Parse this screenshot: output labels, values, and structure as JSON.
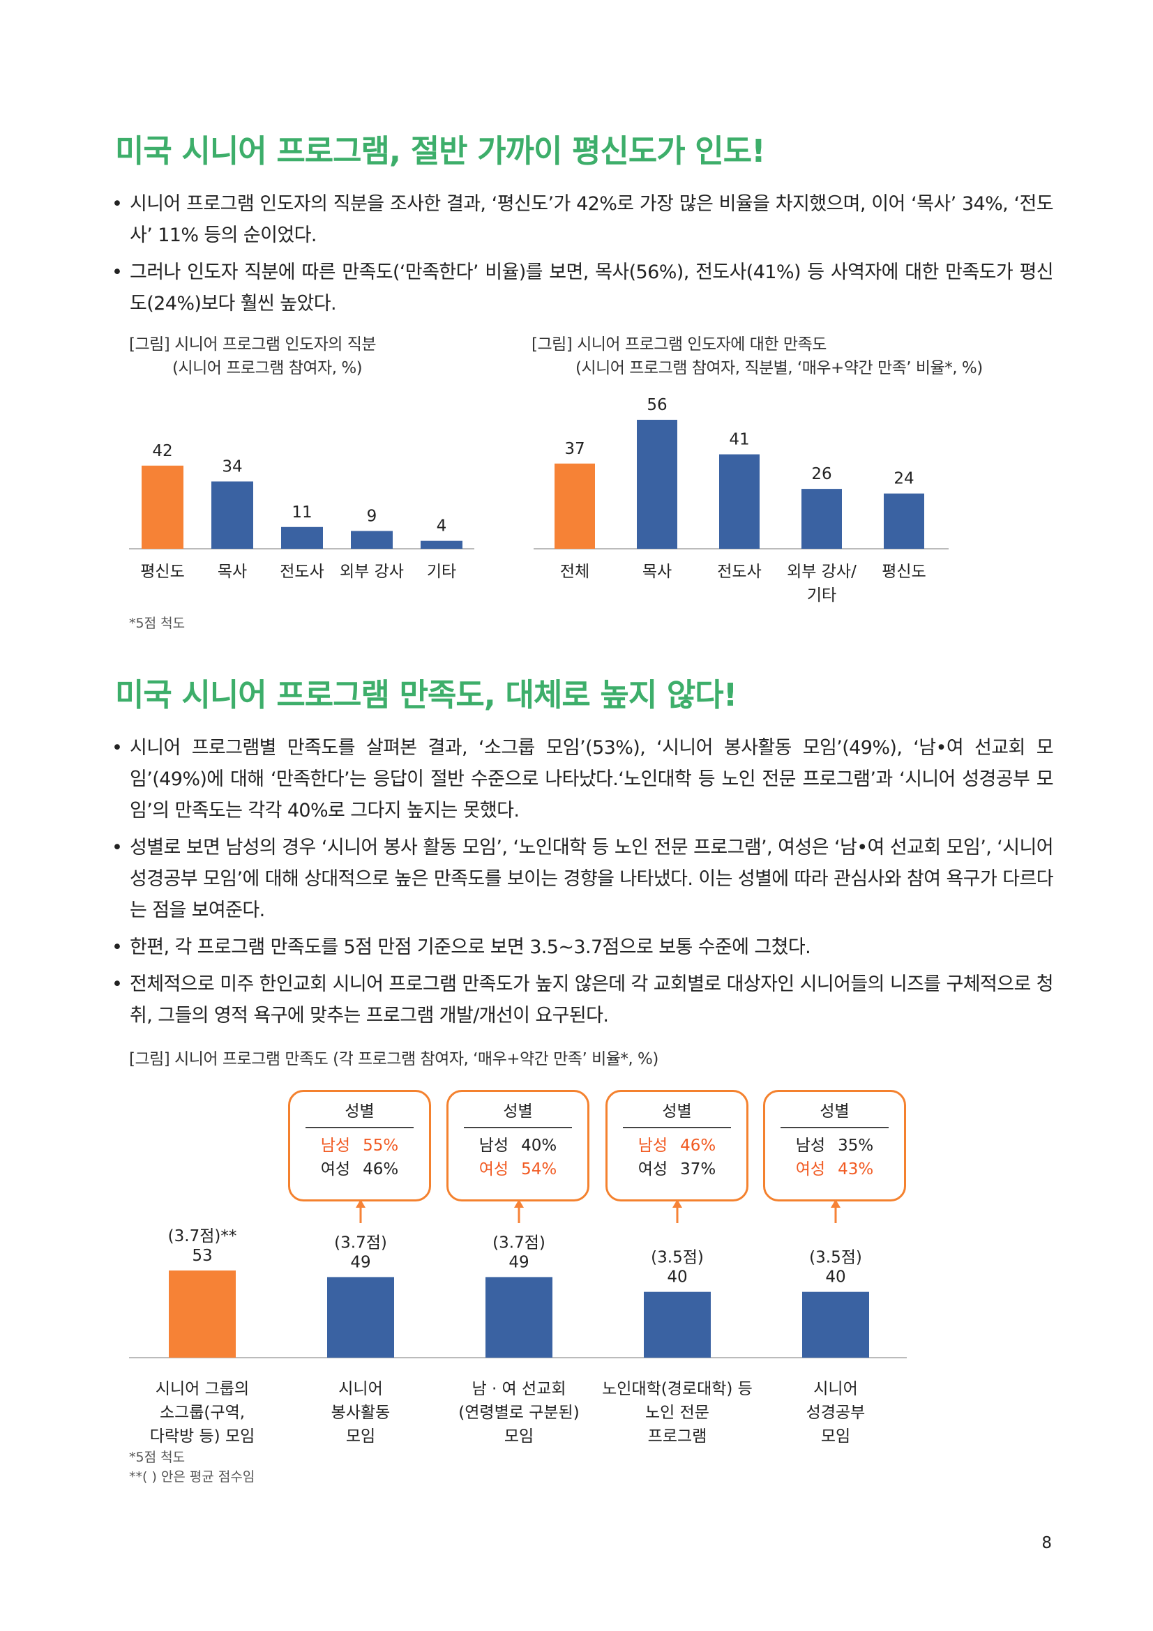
{
  "section1": {
    "title": "미국 시니어 프로그램, 절반 가까이 평신도가 인도!",
    "bullets": [
      "시니어 프로그램 인도자의 직분을 조사한 결과, ‘평신도’가 42%로 가장 많은 비율을 차지했으며, 이어 ‘목사’ 34%, ‘전도사’ 11% 등의 순이었다.",
      "그러나 인도자 직분에 따른 만족도(‘만족한다’ 비율)를 보면, 목사(56%), 전도사(41%) 등 사역자에 대한 만족도가 평신도(24%)보다 훨씬 높았다."
    ],
    "chart1_caption": [
      "[그림] 시니어 프로그램 인도자의 직분",
      "(시니어 프로그램 참여자, %)"
    ],
    "chart2_caption": [
      "[그림] 시니어 프로그램 인도자에 대한 만족도",
      "(시니어 프로그램 참여자, 직분별, ‘매우+약간 만족’ 비율*, %)"
    ],
    "note": "*5점 척도"
  },
  "section2": {
    "title": "미국 시니어 프로그램 만족도, 대체로 높지 않다!",
    "bullets": [
      "시니어 프로그램별 만족도를 살펴본 결과, ‘소그룹 모임’(53%), ‘시니어 봉사활동 모임’(49%), ‘남•여 선교회 모임’(49%)에 대해 ‘만족한다’는 응답이 절반 수준으로 나타났다.‘노인대학 등 노인 전문 프로그램’과 ‘시니어 성경공부 모임’의 만족도는 각각 40%로 그다지 높지는 못했다.",
      "성별로 보면 남성의 경우 ‘시니어 봉사 활동 모임’, ‘노인대학 등 노인 전문 프로그램’, 여성은 ‘남•여 선교회 모임’, ‘시니어 성경공부 모임’에 대해 상대적으로 높은 만족도를 보이는 경향을 나타냈다. 이는 성별에 따라 관심사와 참여 욕구가 다르다는 점을 보여준다.",
      "한편, 각 프로그램 만족도를 5점 만점 기준으로 보면 3.5~3.7점으로 보통 수준에 그쳤다.",
      "전체적으로 미주 한인교회 시니어 프로그램 만족도가 높지 않은데 각 교회별로 대상자인 시니어들의 니즈를 구체적으로 청취, 그들의 영적 욕구에 맞추는 프로그램 개발/개선이 요구된다."
    ],
    "chart3_caption": "[그림] 시니어 프로그램 만족도 (각 프로그램 참여자, ‘매우+약간 만족’ 비율*, %)",
    "notes": [
      "*5점 척도",
      "**(       ) 안은 평균 점수임"
    ],
    "gender_boxes": [
      {
        "title": "성별",
        "male_label": "남성",
        "male": "55%",
        "female_label": "여성",
        "female": "46%",
        "highlight": "male"
      },
      {
        "title": "성별",
        "male_label": "남성",
        "male": "40%",
        "female_label": "여성",
        "female": "54%",
        "highlight": "female"
      },
      {
        "title": "성별",
        "male_label": "남성",
        "male": "46%",
        "female_label": "여성",
        "female": "37%",
        "highlight": "male"
      },
      {
        "title": "성별",
        "male_label": "남성",
        "male": "35%",
        "female_label": "여성",
        "female": "43%",
        "highlight": "female"
      }
    ]
  },
  "page_number": "8",
  "colors": {
    "heading": "#3dae6a",
    "orange": "#f68236",
    "blue": "#3a62a2",
    "highlight": "#f15a22"
  },
  "chart_data": [
    {
      "type": "bar",
      "categories": [
        "평신도",
        "목사",
        "전도사",
        "외부 강사",
        "기타"
      ],
      "values": [
        42,
        34,
        11,
        9,
        4
      ],
      "value_labels": [
        "42",
        "34",
        "11",
        "9",
        "4"
      ],
      "highlight_index": 0,
      "title": "[그림] 시니어 프로그램 인도자의 직분",
      "subtitle": "(시니어 프로그램 참여자, %)",
      "ylim": [
        0,
        56
      ]
    },
    {
      "type": "bar",
      "categories": [
        "전체",
        "목사",
        "전도사",
        "외부 강사/\n기타",
        "평신도"
      ],
      "values": [
        37,
        56,
        41,
        26,
        24
      ],
      "value_labels": [
        "37",
        "56",
        "41",
        "26",
        "24"
      ],
      "highlight_index": 0,
      "title": "[그림] 시니어 프로그램 인도자에 대한 만족도",
      "subtitle": "(시니어 프로그램 참여자, 직분별, ‘매우+약간 만족’ 비율*, %)",
      "ylim": [
        0,
        56
      ]
    },
    {
      "type": "bar",
      "categories": [
        "시니어 그룹의\n소그룹(구역,\n다락방 등) 모임",
        "시니어\n봉사활동\n모임",
        "남 · 여 선교회\n(연령별로 구분된)\n모임",
        "노인대학(경로대학) 등\n노인 전문\n프로그램",
        "시니어\n성경공부\n모임"
      ],
      "values": [
        53,
        49,
        49,
        40,
        40
      ],
      "value_labels": [
        "53",
        "49",
        "49",
        "40",
        "40"
      ],
      "scores": [
        "(3.7점)**",
        "(3.7점)",
        "(3.7점)",
        "(3.5점)",
        "(3.5점)"
      ],
      "highlight_index": 0,
      "title": "[그림] 시니어 프로그램 만족도 (각 프로그램 참여자, ‘매우+약간 만족’ 비율*, %)",
      "ylim": [
        0,
        53
      ]
    }
  ]
}
